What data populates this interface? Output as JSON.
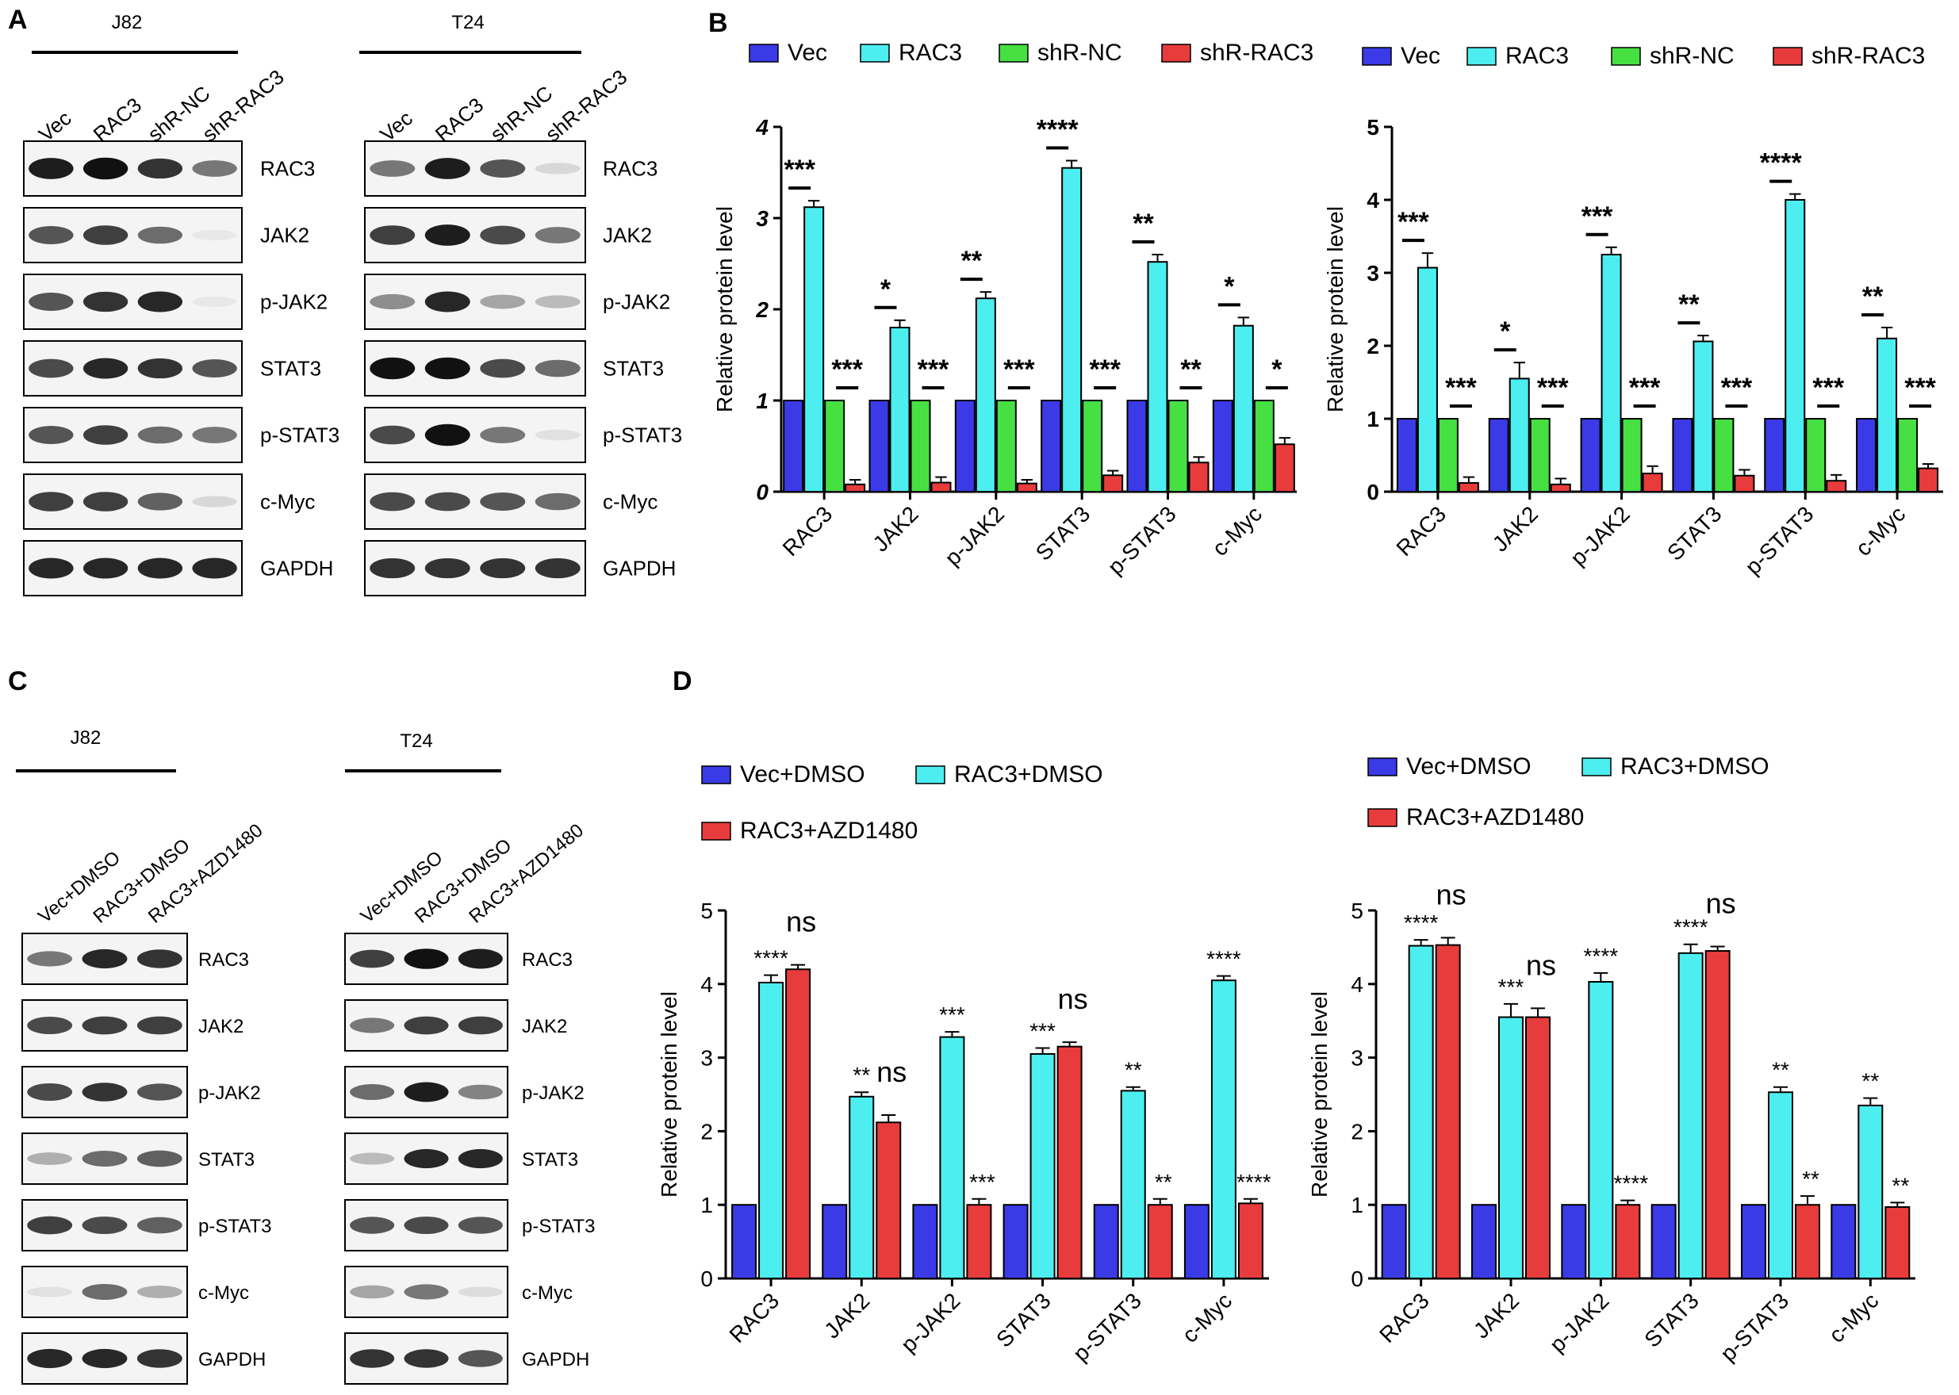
{
  "panel_labels": {
    "a": "A",
    "b": "B",
    "c": "C",
    "d": "D"
  },
  "blots": {
    "a": {
      "cells": [
        "J82",
        "T24"
      ],
      "lanes": [
        "Vec",
        "RAC3",
        "shR-NC",
        "shR-RAC3"
      ],
      "proteins": [
        "RAC3",
        "JAK2",
        "p-JAK2",
        "STAT3",
        "p-STAT3",
        "c-Myc",
        "GAPDH"
      ],
      "intensity": {
        "J82": [
          [
            0.95,
            1,
            0.85,
            0.55
          ],
          [
            0.7,
            0.8,
            0.6,
            0.05
          ],
          [
            0.7,
            0.85,
            0.9,
            0.05
          ],
          [
            0.75,
            0.9,
            0.85,
            0.7
          ],
          [
            0.7,
            0.8,
            0.6,
            0.55
          ],
          [
            0.8,
            0.8,
            0.65,
            0.12
          ],
          [
            0.9,
            0.9,
            0.9,
            0.9
          ]
        ],
        "T24": [
          [
            0.55,
            0.95,
            0.7,
            0.12
          ],
          [
            0.8,
            0.95,
            0.75,
            0.55
          ],
          [
            0.45,
            0.9,
            0.35,
            0.25
          ],
          [
            1,
            1,
            0.75,
            0.6
          ],
          [
            0.75,
            1,
            0.55,
            0.08
          ],
          [
            0.75,
            0.75,
            0.7,
            0.6
          ],
          [
            0.85,
            0.85,
            0.85,
            0.85
          ]
        ]
      }
    },
    "c": {
      "cells": [
        "J82",
        "T24"
      ],
      "lanes": [
        "Vec+DMSO",
        "RAC3+DMSO",
        "RAC3+AZD1480"
      ],
      "proteins": [
        "RAC3",
        "JAK2",
        "p-JAK2",
        "STAT3",
        "p-STAT3",
        "c-Myc",
        "GAPDH"
      ],
      "intensity": {
        "J82": [
          [
            0.55,
            0.9,
            0.85
          ],
          [
            0.75,
            0.8,
            0.8
          ],
          [
            0.75,
            0.85,
            0.7
          ],
          [
            0.3,
            0.6,
            0.65
          ],
          [
            0.8,
            0.75,
            0.65
          ],
          [
            0.08,
            0.6,
            0.3
          ],
          [
            0.9,
            0.9,
            0.85
          ]
        ],
        "T24": [
          [
            0.8,
            1,
            0.95
          ],
          [
            0.55,
            0.8,
            0.8
          ],
          [
            0.6,
            0.95,
            0.5
          ],
          [
            0.25,
            0.9,
            0.9
          ],
          [
            0.7,
            0.75,
            0.7
          ],
          [
            0.35,
            0.55,
            0.1
          ],
          [
            0.85,
            0.85,
            0.7
          ]
        ]
      }
    }
  },
  "chart_data": [
    {
      "id": "B-left",
      "type": "bar",
      "title": "",
      "xlabel": "",
      "ylabel": "Relative protein level",
      "ylim": [
        0,
        4
      ],
      "yticks": [
        "0",
        "1",
        "2",
        "3",
        "4"
      ],
      "ytick_style": "bold-italic",
      "categories": [
        "RAC3",
        "JAK2",
        "p-JAK2",
        "STAT3",
        "p-STAT3",
        "c-Myc"
      ],
      "series": [
        {
          "name": "Vec",
          "color": "#3a3ae6",
          "values": [
            1,
            1,
            1,
            1,
            1,
            1
          ],
          "errors": [
            0,
            0,
            0,
            0,
            0,
            0
          ]
        },
        {
          "name": "RAC3",
          "color": "#4deef0",
          "values": [
            3.12,
            1.8,
            2.12,
            3.55,
            2.52,
            1.82
          ],
          "errors": [
            0.07,
            0.08,
            0.07,
            0.08,
            0.08,
            0.09
          ]
        },
        {
          "name": "shR-NC",
          "color": "#46e043",
          "values": [
            1,
            1,
            1,
            1,
            1,
            1
          ],
          "errors": [
            0,
            0,
            0,
            0,
            0,
            0
          ]
        },
        {
          "name": "shR-RAC3",
          "color": "#e83c3c",
          "values": [
            0.08,
            0.1,
            0.09,
            0.18,
            0.32,
            0.52
          ],
          "errors": [
            0.05,
            0.06,
            0.04,
            0.05,
            0.06,
            0.07
          ]
        }
      ],
      "annotations": {
        "up": [
          "***",
          "*",
          "**",
          "****",
          "**",
          "*"
        ],
        "down": [
          "***",
          "***",
          "***",
          "***",
          "**",
          "*"
        ]
      }
    },
    {
      "id": "B-right",
      "type": "bar",
      "title": "",
      "xlabel": "",
      "ylabel": "Relative protein level",
      "ylim": [
        0,
        5
      ],
      "yticks": [
        "0",
        "1",
        "2",
        "3",
        "4",
        "5"
      ],
      "ytick_style": "bold",
      "categories": [
        "RAC3",
        "JAK2",
        "p-JAK2",
        "STAT3",
        "p-STAT3",
        "c-Myc"
      ],
      "series": [
        {
          "name": "Vec",
          "color": "#3a3ae6",
          "values": [
            1,
            1,
            1,
            1,
            1,
            1
          ],
          "errors": [
            0,
            0,
            0,
            0,
            0,
            0
          ]
        },
        {
          "name": "RAC3",
          "color": "#4deef0",
          "values": [
            3.07,
            1.55,
            3.25,
            2.06,
            4.0,
            2.1
          ],
          "errors": [
            0.2,
            0.22,
            0.1,
            0.08,
            0.08,
            0.15
          ]
        },
        {
          "name": "shR-NC",
          "color": "#46e043",
          "values": [
            1,
            1,
            1,
            1,
            1,
            1
          ],
          "errors": [
            0,
            0,
            0,
            0,
            0,
            0
          ]
        },
        {
          "name": "shR-RAC3",
          "color": "#e83c3c",
          "values": [
            0.12,
            0.1,
            0.25,
            0.22,
            0.15,
            0.32
          ],
          "errors": [
            0.08,
            0.08,
            0.1,
            0.08,
            0.08,
            0.06
          ]
        }
      ],
      "annotations": {
        "up": [
          "***",
          "*",
          "***",
          "**",
          "****",
          "**"
        ],
        "down": [
          "***",
          "***",
          "***",
          "***",
          "***",
          "***"
        ]
      }
    },
    {
      "id": "D-left",
      "type": "bar",
      "title": "",
      "xlabel": "",
      "ylabel": "Relative protein level",
      "ylim": [
        0,
        5
      ],
      "yticks": [
        "0",
        "1",
        "2",
        "3",
        "4",
        "5"
      ],
      "ytick_style": "normal",
      "categories": [
        "RAC3",
        "JAK2",
        "p-JAK2",
        "STAT3",
        "p-STAT3",
        "c-Myc"
      ],
      "series": [
        {
          "name": "Vec+DMSO",
          "color": "#3a3ae6",
          "values": [
            1,
            1,
            1,
            1,
            1,
            1
          ],
          "errors": [
            0,
            0,
            0,
            0,
            0,
            0
          ]
        },
        {
          "name": "RAC3+DMSO",
          "color": "#4deef0",
          "values": [
            4.02,
            2.47,
            3.28,
            3.05,
            2.55,
            4.05
          ],
          "errors": [
            0.1,
            0.06,
            0.07,
            0.08,
            0.05,
            0.06
          ]
        },
        {
          "name": "RAC3+AZD1480",
          "color": "#e83c3c",
          "values": [
            4.2,
            2.12,
            1.0,
            3.15,
            1.0,
            1.02
          ],
          "errors": [
            0.06,
            0.1,
            0.08,
            0.06,
            0.08,
            0.06
          ]
        }
      ],
      "annotations": {
        "rac": [
          "****",
          "**",
          "***",
          "***",
          "**",
          "****"
        ],
        "azd": [
          "ns",
          "ns",
          "***",
          "ns",
          "**",
          "****"
        ]
      }
    },
    {
      "id": "D-right",
      "type": "bar",
      "title": "",
      "xlabel": "",
      "ylabel": "Relative protein level",
      "ylim": [
        0,
        5
      ],
      "yticks": [
        "0",
        "1",
        "2",
        "3",
        "4",
        "5"
      ],
      "ytick_style": "normal",
      "categories": [
        "RAC3",
        "JAK2",
        "p-JAK2",
        "STAT3",
        "p-STAT3",
        "c-Myc"
      ],
      "series": [
        {
          "name": "Vec+DMSO",
          "color": "#3a3ae6",
          "values": [
            1,
            1,
            1,
            1,
            1,
            1
          ],
          "errors": [
            0,
            0,
            0,
            0,
            0,
            0
          ]
        },
        {
          "name": "RAC3+DMSO",
          "color": "#4deef0",
          "values": [
            4.52,
            3.55,
            4.03,
            4.42,
            2.53,
            2.35
          ],
          "errors": [
            0.08,
            0.18,
            0.12,
            0.12,
            0.07,
            0.1
          ]
        },
        {
          "name": "RAC3+AZD1480",
          "color": "#e83c3c",
          "values": [
            4.53,
            3.55,
            1.0,
            4.45,
            1.0,
            0.97
          ],
          "errors": [
            0.1,
            0.12,
            0.06,
            0.06,
            0.12,
            0.06
          ]
        }
      ],
      "annotations": {
        "rac": [
          "****",
          "***",
          "****",
          "****",
          "**",
          "**"
        ],
        "azd": [
          "ns",
          "ns",
          "****",
          "ns",
          "**",
          "**"
        ]
      }
    }
  ]
}
